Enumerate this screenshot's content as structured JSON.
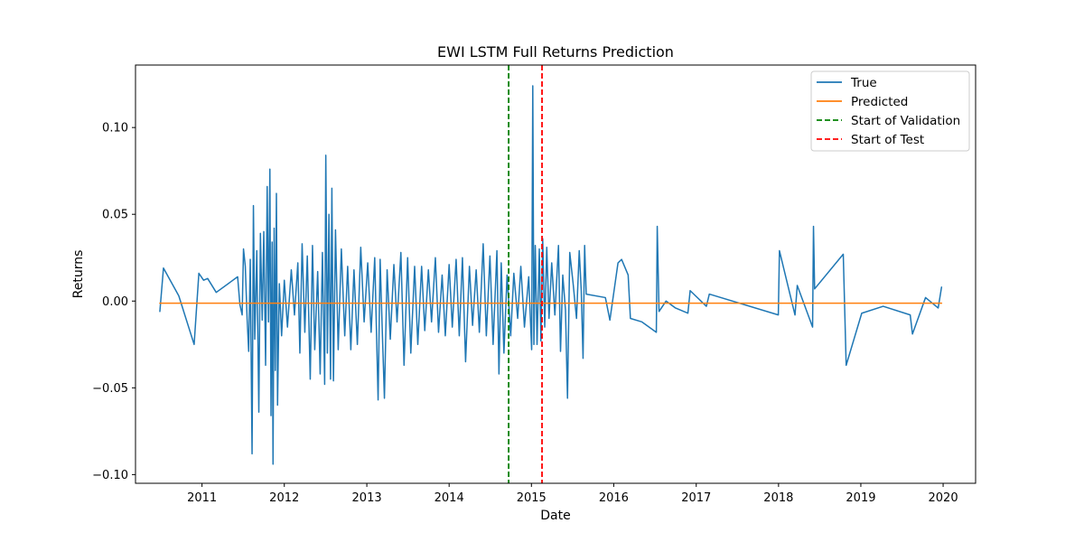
{
  "chart_data": {
    "type": "line",
    "title": "EWI LSTM Full Returns Prediction",
    "xlabel": "Date",
    "ylabel": "Returns",
    "xlim": [
      "2010-03-12",
      "2020-05-24"
    ],
    "ylim": [
      -0.105,
      0.136
    ],
    "x_ticks": [
      "2011",
      "2012",
      "2013",
      "2014",
      "2015",
      "2016",
      "2017",
      "2018",
      "2019",
      "2020"
    ],
    "y_ticks": [
      -0.1,
      -0.05,
      0.0,
      0.05,
      0.1
    ],
    "y_tick_labels": [
      "−0.10",
      "−0.05",
      "0.00",
      "0.05",
      "0.10"
    ],
    "grid": false,
    "legend_position": "upper right",
    "series": [
      {
        "name": "True",
        "color": "#1f77b4",
        "style": "solid",
        "points": [
          [
            "2010-06-28",
            -0.006
          ],
          [
            "2010-07-14",
            0.019
          ],
          [
            "2010-09-20",
            0.003
          ],
          [
            "2010-11-27",
            -0.025
          ],
          [
            "2010-12-18",
            0.016
          ],
          [
            "2011-01-08",
            0.012
          ],
          [
            "2011-01-26",
            0.013
          ],
          [
            "2011-03-05",
            0.005
          ],
          [
            "2011-06-08",
            0.014
          ],
          [
            "2011-06-18",
            -0.002
          ],
          [
            "2011-06-28",
            -0.008
          ],
          [
            "2011-07-04",
            0.03
          ],
          [
            "2011-07-12",
            0.02
          ],
          [
            "2011-07-20",
            -0.01
          ],
          [
            "2011-07-27",
            -0.029
          ],
          [
            "2011-08-03",
            0.024
          ],
          [
            "2011-08-11",
            -0.088
          ],
          [
            "2011-08-17",
            0.055
          ],
          [
            "2011-08-23",
            -0.022
          ],
          [
            "2011-09-01",
            0.029
          ],
          [
            "2011-09-10",
            -0.064
          ],
          [
            "2011-09-17",
            0.039
          ],
          [
            "2011-09-25",
            -0.011
          ],
          [
            "2011-10-02",
            0.04
          ],
          [
            "2011-10-10",
            -0.037
          ],
          [
            "2011-10-17",
            0.066
          ],
          [
            "2011-10-23",
            -0.012
          ],
          [
            "2011-10-29",
            0.076
          ],
          [
            "2011-11-03",
            -0.066
          ],
          [
            "2011-11-08",
            0.034
          ],
          [
            "2011-11-12",
            -0.094
          ],
          [
            "2011-11-17",
            0.042
          ],
          [
            "2011-11-22",
            -0.04
          ],
          [
            "2011-11-27",
            0.062
          ],
          [
            "2011-12-02",
            -0.06
          ],
          [
            "2011-12-10",
            0.01
          ],
          [
            "2011-12-20",
            -0.02
          ],
          [
            "2012-01-01",
            0.012
          ],
          [
            "2012-01-15",
            -0.015
          ],
          [
            "2012-02-01",
            0.018
          ],
          [
            "2012-02-15",
            -0.008
          ],
          [
            "2012-03-01",
            0.022
          ],
          [
            "2012-03-10",
            -0.03
          ],
          [
            "2012-03-20",
            0.033
          ],
          [
            "2012-04-01",
            -0.018
          ],
          [
            "2012-04-12",
            0.026
          ],
          [
            "2012-04-25",
            -0.045
          ],
          [
            "2012-05-05",
            0.032
          ],
          [
            "2012-05-15",
            -0.028
          ],
          [
            "2012-05-28",
            0.017
          ],
          [
            "2012-06-08",
            -0.042
          ],
          [
            "2012-06-18",
            0.028
          ],
          [
            "2012-06-28",
            -0.048
          ],
          [
            "2012-07-03",
            0.084
          ],
          [
            "2012-07-10",
            -0.03
          ],
          [
            "2012-07-17",
            0.05
          ],
          [
            "2012-07-24",
            -0.045
          ],
          [
            "2012-07-30",
            0.065
          ],
          [
            "2012-08-06",
            -0.046
          ],
          [
            "2012-08-15",
            0.041
          ],
          [
            "2012-08-27",
            -0.028
          ],
          [
            "2012-09-10",
            0.03
          ],
          [
            "2012-09-25",
            -0.02
          ],
          [
            "2012-10-08",
            0.02
          ],
          [
            "2012-10-22",
            -0.028
          ],
          [
            "2012-11-05",
            0.018
          ],
          [
            "2012-11-20",
            -0.025
          ],
          [
            "2012-12-05",
            0.031
          ],
          [
            "2012-12-20",
            -0.012
          ],
          [
            "2013-01-05",
            0.022
          ],
          [
            "2013-01-20",
            -0.018
          ],
          [
            "2013-02-05",
            0.025
          ],
          [
            "2013-02-20",
            -0.057
          ],
          [
            "2013-03-01",
            0.024
          ],
          [
            "2013-03-10",
            -0.015
          ],
          [
            "2013-03-20",
            -0.056
          ],
          [
            "2013-04-01",
            0.018
          ],
          [
            "2013-04-15",
            -0.022
          ],
          [
            "2013-05-01",
            0.021
          ],
          [
            "2013-05-15",
            -0.012
          ],
          [
            "2013-06-01",
            0.028
          ],
          [
            "2013-06-15",
            -0.037
          ],
          [
            "2013-07-01",
            0.025
          ],
          [
            "2013-07-15",
            -0.03
          ],
          [
            "2013-08-01",
            0.02
          ],
          [
            "2013-08-15",
            -0.025
          ],
          [
            "2013-09-01",
            0.02
          ],
          [
            "2013-09-15",
            -0.017
          ],
          [
            "2013-10-01",
            0.018
          ],
          [
            "2013-10-15",
            -0.012
          ],
          [
            "2013-11-01",
            0.025
          ],
          [
            "2013-11-15",
            -0.018
          ],
          [
            "2013-12-01",
            0.015
          ],
          [
            "2013-12-15",
            -0.02
          ],
          [
            "2014-01-01",
            0.021
          ],
          [
            "2014-01-15",
            -0.015
          ],
          [
            "2014-02-01",
            0.024
          ],
          [
            "2014-02-15",
            -0.02
          ],
          [
            "2014-03-01",
            0.025
          ],
          [
            "2014-03-15",
            -0.035
          ],
          [
            "2014-04-01",
            0.02
          ],
          [
            "2014-04-15",
            -0.014
          ],
          [
            "2014-05-01",
            0.018
          ],
          [
            "2014-05-15",
            -0.018
          ],
          [
            "2014-06-01",
            0.033
          ],
          [
            "2014-06-15",
            -0.02
          ],
          [
            "2014-07-01",
            0.026
          ],
          [
            "2014-07-15",
            -0.025
          ],
          [
            "2014-08-01",
            0.029
          ],
          [
            "2014-08-10",
            -0.042
          ],
          [
            "2014-08-20",
            0.022
          ],
          [
            "2014-09-01",
            -0.03
          ],
          [
            "2014-09-15",
            0.015
          ],
          [
            "2014-10-01",
            -0.02
          ],
          [
            "2014-10-15",
            0.016
          ],
          [
            "2014-11-01",
            -0.01
          ],
          [
            "2014-11-15",
            0.02
          ],
          [
            "2014-12-01",
            -0.015
          ],
          [
            "2014-12-20",
            0.014
          ],
          [
            "2015-01-02",
            -0.028
          ],
          [
            "2015-01-07",
            0.124
          ],
          [
            "2015-01-12",
            -0.025
          ],
          [
            "2015-01-18",
            0.032
          ],
          [
            "2015-01-26",
            -0.025
          ],
          [
            "2015-02-05",
            0.03
          ],
          [
            "2015-02-12",
            -0.023
          ],
          [
            "2015-02-20",
            0.036
          ],
          [
            "2015-03-01",
            -0.015
          ],
          [
            "2015-03-10",
            0.031
          ],
          [
            "2015-03-20",
            -0.01
          ],
          [
            "2015-04-01",
            0.022
          ],
          [
            "2015-04-15",
            -0.008
          ],
          [
            "2015-05-01",
            0.032
          ],
          [
            "2015-05-10",
            -0.029
          ],
          [
            "2015-05-20",
            0.015
          ],
          [
            "2015-06-01",
            -0.005
          ],
          [
            "2015-06-10",
            -0.056
          ],
          [
            "2015-06-20",
            0.028
          ],
          [
            "2015-07-05",
            0.01
          ],
          [
            "2015-07-20",
            -0.01
          ],
          [
            "2015-08-01",
            0.029
          ],
          [
            "2015-08-10",
            0.006
          ],
          [
            "2015-08-18",
            -0.033
          ],
          [
            "2015-08-25",
            0.032
          ],
          [
            "2015-09-01",
            0.004
          ],
          [
            "2015-11-25",
            0.002
          ],
          [
            "2015-12-15",
            -0.011
          ],
          [
            "2016-01-20",
            0.022
          ],
          [
            "2016-02-05",
            0.024
          ],
          [
            "2016-03-05",
            0.015
          ],
          [
            "2016-03-15",
            -0.01
          ],
          [
            "2016-05-05",
            -0.012
          ],
          [
            "2016-07-08",
            -0.018
          ],
          [
            "2016-07-12",
            0.043
          ],
          [
            "2016-07-20",
            -0.006
          ],
          [
            "2016-08-20",
            0.0
          ],
          [
            "2016-10-01",
            -0.004
          ],
          [
            "2016-11-25",
            -0.007
          ],
          [
            "2016-12-05",
            0.006
          ],
          [
            "2017-02-15",
            -0.003
          ],
          [
            "2017-02-28",
            0.004
          ],
          [
            "2017-12-31",
            -0.008
          ],
          [
            "2018-01-05",
            0.029
          ],
          [
            "2018-03-15",
            -0.008
          ],
          [
            "2018-03-25",
            0.009
          ],
          [
            "2018-06-01",
            -0.015
          ],
          [
            "2018-06-05",
            0.043
          ],
          [
            "2018-06-10",
            0.007
          ],
          [
            "2018-10-15",
            0.027
          ],
          [
            "2018-10-28",
            -0.037
          ],
          [
            "2019-01-05",
            -0.007
          ],
          [
            "2019-04-10",
            -0.003
          ],
          [
            "2019-08-08",
            -0.008
          ],
          [
            "2019-08-18",
            -0.019
          ],
          [
            "2019-10-15",
            0.002
          ],
          [
            "2019-12-10",
            -0.004
          ],
          [
            "2019-12-25",
            0.008
          ]
        ]
      },
      {
        "name": "Predicted",
        "color": "#ff7f0e",
        "style": "solid",
        "points": [
          [
            "2010-06-28",
            -0.0012
          ],
          [
            "2019-12-25",
            -0.0012
          ]
        ]
      }
    ],
    "reference_lines": [
      {
        "name": "Start of Validation",
        "color": "#008000",
        "style": "dashed",
        "x": "2014-09-22"
      },
      {
        "name": "Start of Test",
        "color": "#ff0000",
        "style": "dashed",
        "x": "2015-02-17"
      }
    ]
  }
}
